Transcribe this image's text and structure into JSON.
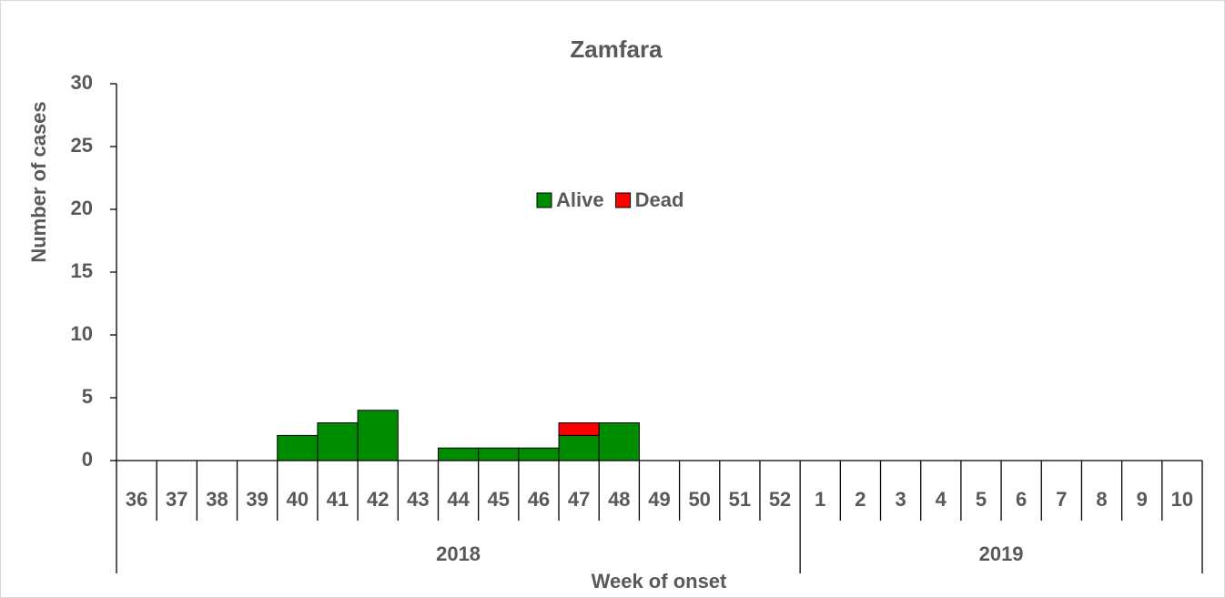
{
  "chart_data": {
    "type": "stacked_bar",
    "title": "Zamfara",
    "x_label": "Week of onset",
    "y_label": "Number of cases",
    "categories": [
      "36",
      "37",
      "38",
      "39",
      "40",
      "41",
      "42",
      "43",
      "44",
      "45",
      "46",
      "47",
      "48",
      "49",
      "50",
      "51",
      "52",
      "1",
      "2",
      "3",
      "4",
      "5",
      "6",
      "7",
      "8",
      "9",
      "10"
    ],
    "category_groups": [
      "2018",
      "2019"
    ],
    "series": [
      {
        "name": "Alive",
        "color": "#008c00",
        "values": [
          0,
          0,
          0,
          0,
          2,
          3,
          4,
          0,
          1,
          1,
          1,
          2,
          3,
          0,
          0,
          0,
          0,
          0,
          0,
          0,
          0,
          0,
          0,
          0,
          0,
          0,
          0
        ]
      },
      {
        "name": "Dead",
        "color": "#ff0000",
        "values": [
          0,
          0,
          0,
          0,
          0,
          0,
          0,
          0,
          0,
          0,
          0,
          1,
          0,
          0,
          0,
          0,
          0,
          0,
          0,
          0,
          0,
          0,
          0,
          0,
          0,
          0,
          0
        ]
      }
    ],
    "ylim": [
      0,
      30
    ],
    "yticks": [
      0,
      5,
      10,
      15,
      20,
      25,
      30
    ],
    "legend": "top-center"
  }
}
